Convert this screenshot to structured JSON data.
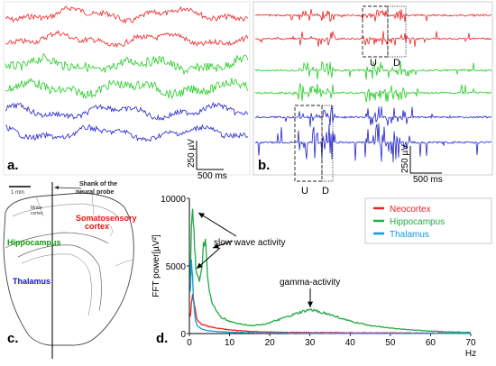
{
  "panels": {
    "a": {
      "letter": "a.",
      "scale_amp": "250 µV",
      "scale_time": "500 ms",
      "traces": [
        {
          "region": "Neocortex",
          "color": "#ee2222"
        },
        {
          "region": "Neocortex",
          "color": "#ee2222"
        },
        {
          "region": "Hippocampus",
          "color": "#22cc22"
        },
        {
          "region": "Hippocampus",
          "color": "#22cc22"
        },
        {
          "region": "Thalamus",
          "color": "#2222cc"
        },
        {
          "region": "Thalamus",
          "color": "#2222cc"
        }
      ]
    },
    "b": {
      "letter": "b.",
      "scale_amp": "250 µV",
      "scale_time": "500 ms",
      "box_up": "U",
      "box_down": "D"
    },
    "c": {
      "letter": "c.",
      "scale_bar": "1 mm",
      "probe_label": "Shank of the neural probe",
      "regions": {
        "somatosensory": "Somatosensory cortex",
        "hippocampus": "Hippocampus",
        "thalamus": "Thalamus",
        "motor": "Motor cortex"
      },
      "colors": {
        "somatosensory": "#ee1111",
        "hippocampus": "#119911",
        "thalamus": "#1111cc"
      }
    },
    "d": {
      "letter": "d.",
      "annotations": {
        "slow": "slow wave activity",
        "gamma": "gamma-activity"
      }
    }
  },
  "chart_data": {
    "type": "line",
    "xlabel": "Hz",
    "ylabel": "FFT power[µV²]",
    "xlim": [
      0,
      70
    ],
    "ylim": [
      0,
      10000
    ],
    "xticks": [
      0,
      10,
      20,
      30,
      40,
      50,
      60,
      70
    ],
    "yticks": [
      0,
      5000,
      10000
    ],
    "legend_position": "top-right",
    "series": [
      {
        "name": "Neocortex",
        "color": "#ee2222",
        "x": [
          0.2,
          0.5,
          0.8,
          1.0,
          1.3,
          1.6,
          2.0,
          2.5,
          3,
          4,
          5,
          6,
          8,
          10,
          12,
          15,
          20,
          25,
          30,
          40,
          50,
          60,
          70
        ],
        "y": [
          1200,
          2200,
          2800,
          2500,
          2000,
          1500,
          1000,
          800,
          700,
          600,
          500,
          450,
          350,
          280,
          220,
          160,
          110,
          90,
          80,
          60,
          50,
          40,
          40
        ]
      },
      {
        "name": "Hippocampus",
        "color": "#22aa44",
        "x": [
          0.2,
          0.5,
          0.8,
          1.0,
          1.3,
          1.6,
          2.0,
          2.5,
          3.0,
          3.5,
          4.0,
          4.5,
          5.0,
          6,
          7,
          8,
          10,
          12,
          15,
          18,
          20,
          22,
          25,
          28,
          30,
          32,
          35,
          38,
          40,
          45,
          50,
          55,
          60,
          65,
          70
        ],
        "y": [
          4000,
          8000,
          9400,
          8500,
          6500,
          5000,
          4200,
          4000,
          4500,
          6500,
          6800,
          4500,
          3000,
          2000,
          1500,
          1200,
          900,
          750,
          600,
          650,
          800,
          1000,
          1300,
          1600,
          1750,
          1650,
          1400,
          1100,
          900,
          600,
          400,
          280,
          180,
          120,
          80
        ]
      },
      {
        "name": "Thalamus",
        "color": "#1199dd",
        "x": [
          0.2,
          0.5,
          0.8,
          1.0,
          1.3,
          1.6,
          2.0,
          2.5,
          3,
          4,
          5,
          6,
          8,
          10,
          12,
          15,
          20,
          30,
          40,
          50,
          60,
          70
        ],
        "y": [
          3000,
          5300,
          4200,
          2500,
          1500,
          900,
          600,
          450,
          350,
          250,
          200,
          170,
          130,
          100,
          80,
          60,
          40,
          30,
          20,
          15,
          10,
          10
        ]
      }
    ]
  }
}
